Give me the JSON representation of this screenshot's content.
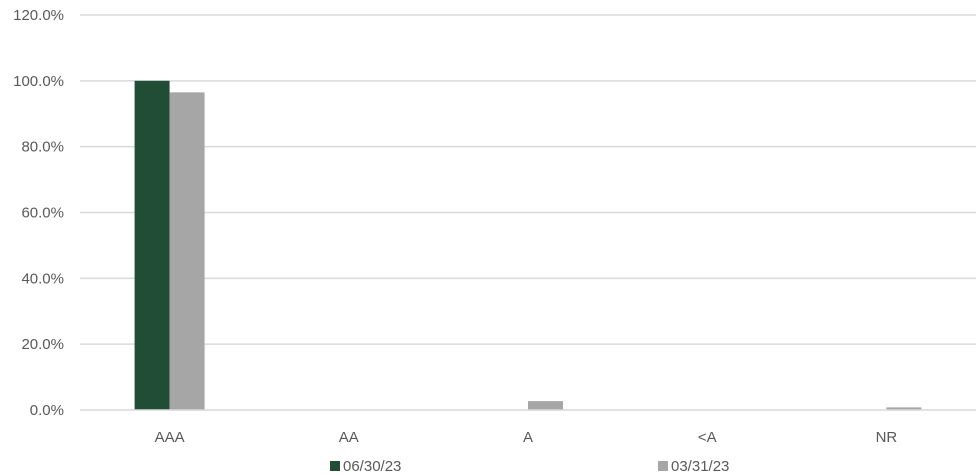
{
  "chart_data": {
    "type": "bar",
    "title": "",
    "xlabel": "",
    "ylabel": "",
    "categories": [
      "AAA",
      "AA",
      "A",
      "<A",
      "NR"
    ],
    "series": [
      {
        "name": "06/30/23",
        "color": "#214d37",
        "values": [
          100.0,
          0.0,
          0.0,
          0.0,
          0.0
        ]
      },
      {
        "name": "03/31/23",
        "color": "#a6a6a6",
        "values": [
          96.5,
          0.0,
          2.7,
          0.0,
          0.8
        ]
      }
    ],
    "ylim": [
      0,
      120
    ],
    "y_ticks": [
      "0.0%",
      "20.0%",
      "40.0%",
      "60.0%",
      "80.0%",
      "100.0%",
      "120.0%"
    ],
    "grid": true,
    "legend_position": "bottom",
    "gridline_color": "#d9d9d9",
    "text_color": "#595959"
  }
}
